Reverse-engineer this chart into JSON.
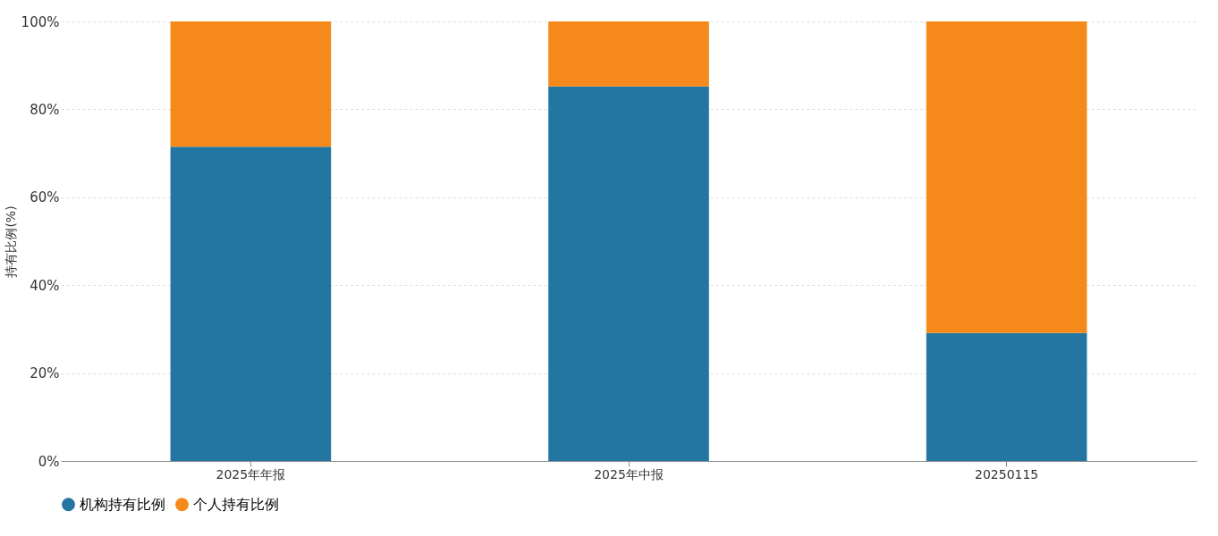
{
  "chart_data": {
    "type": "bar",
    "stacked": true,
    "ylabel": "持有比例(%)",
    "categories": [
      "2025年年报",
      "2025年中报",
      "20250115"
    ],
    "series": [
      {
        "name": "机构持有比例",
        "color": "#2376a2",
        "values": [
          71.5,
          85.2,
          29.1
        ]
      },
      {
        "name": "个人持有比例",
        "color": "#f5891a",
        "values": [
          28.5,
          14.8,
          70.9
        ]
      }
    ],
    "ylim": [
      0,
      100
    ],
    "yticks": [
      {
        "value": 0,
        "label": "0%"
      },
      {
        "value": 20,
        "label": "20%"
      },
      {
        "value": 40,
        "label": "40%"
      },
      {
        "value": 60,
        "label": "60%"
      },
      {
        "value": 80,
        "label": "80%"
      },
      {
        "value": 100,
        "label": "100%"
      }
    ],
    "grid": "y",
    "legend": "bottom"
  }
}
